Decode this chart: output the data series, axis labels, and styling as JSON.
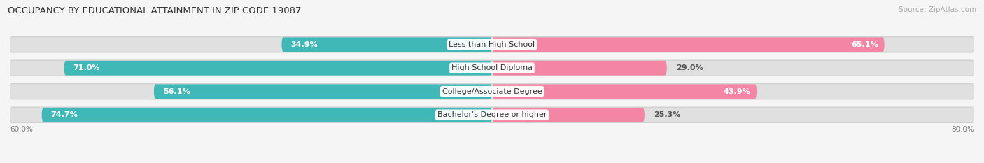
{
  "title": "OCCUPANCY BY EDUCATIONAL ATTAINMENT IN ZIP CODE 19087",
  "source": "Source: ZipAtlas.com",
  "categories": [
    "Less than High School",
    "High School Diploma",
    "College/Associate Degree",
    "Bachelor's Degree or higher"
  ],
  "owner_values": [
    34.9,
    71.0,
    56.1,
    74.7
  ],
  "renter_values": [
    65.1,
    29.0,
    43.9,
    25.3
  ],
  "owner_color": "#40b8b8",
  "renter_color": "#f585a5",
  "bar_max": 80.0,
  "bar_height": 0.62,
  "background_color": "#f5f5f5",
  "bar_bg_color": "#e0e0e0",
  "bar_outer_color": "#d0d0d0",
  "title_fontsize": 9.5,
  "source_fontsize": 7.5,
  "value_fontsize": 8.0,
  "cat_fontsize": 8.0,
  "axis_label_left": "60.0%",
  "axis_label_right": "80.0%",
  "renter_dark_threshold": 35
}
